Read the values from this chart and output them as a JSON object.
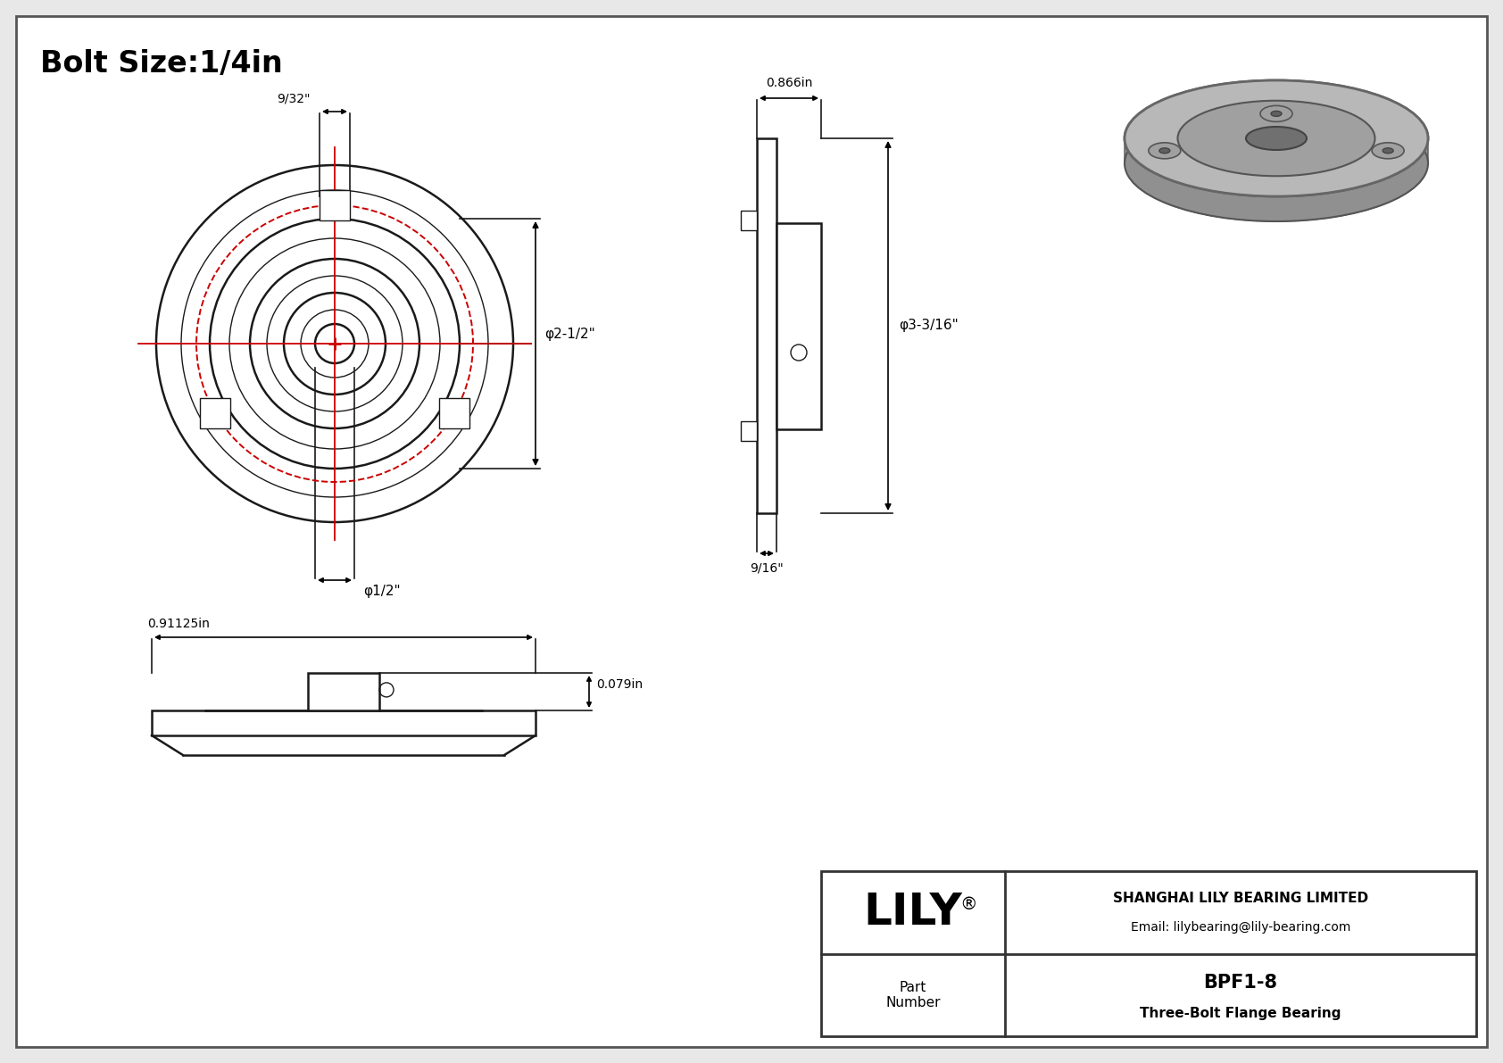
{
  "title": "Bolt Size:1/4in",
  "bg_color": "#ffffff",
  "line_color": "#1a1a1a",
  "red_color": "#cc0000",
  "annotations": {
    "front_9_32": "9/32\"",
    "front_phi_2_5": "φ2-1/2\"",
    "front_phi_0_5": "φ1/2\"",
    "side_0866": "0.866in",
    "side_phi_3_3_16": "φ3-3/16\"",
    "side_9_16": "9/16\"",
    "bottom_091": "0.91125in",
    "bottom_0079": "0.079in"
  },
  "title_box": {
    "lily_text": "LILY",
    "lily_reg": "®",
    "company": "SHANGHAI LILY BEARING LIMITED",
    "email": "Email: lilybearing@lily-bearing.com",
    "part_label": "Part\nNumber",
    "part_number": "BPF1-8",
    "part_desc": "Three-Bolt Flange Bearing"
  }
}
